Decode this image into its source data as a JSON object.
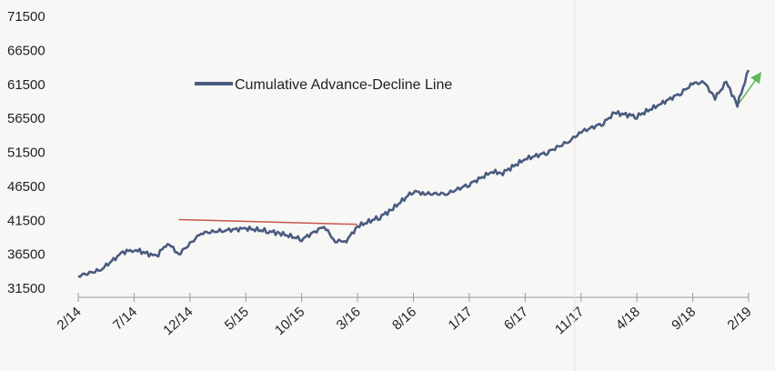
{
  "chart_data": {
    "type": "line",
    "title": "",
    "xlabel": "",
    "ylabel": "",
    "ylim": [
      31500,
      71500
    ],
    "yticks": [
      31500,
      36500,
      41500,
      46500,
      51500,
      56500,
      61500,
      66500,
      71500
    ],
    "xlim": [
      "2014-02",
      "2019-02"
    ],
    "xticks": [
      "2/14",
      "7/14",
      "12/14",
      "5/15",
      "10/15",
      "3/16",
      "8/16",
      "1/17",
      "6/17",
      "11/17",
      "4/18",
      "9/18",
      "2/19"
    ],
    "grid": false,
    "legend_position": "upper-left",
    "series": [
      {
        "name": "Cumulative Advance-Decline Line",
        "color": "#4a5b80",
        "x": [
          "2014-02",
          "2014-04",
          "2014-06",
          "2014-07",
          "2014-09",
          "2014-10",
          "2014-11",
          "2015-01",
          "2015-03",
          "2015-05",
          "2015-07",
          "2015-08",
          "2015-10",
          "2015-12",
          "2016-01",
          "2016-02",
          "2016-03",
          "2016-05",
          "2016-06",
          "2016-08",
          "2016-09",
          "2016-11",
          "2017-01",
          "2017-03",
          "2017-04",
          "2017-06",
          "2017-08",
          "2017-10",
          "2017-11",
          "2018-01",
          "2018-02",
          "2018-04",
          "2018-06",
          "2018-08",
          "2018-09",
          "2018-10",
          "2018-11",
          "2018-12",
          "2019-01",
          "2019-02"
        ],
        "values": [
          33300,
          34200,
          36800,
          37200,
          36200,
          38200,
          36500,
          39600,
          40000,
          40300,
          39900,
          39600,
          38700,
          40600,
          38400,
          38500,
          40600,
          42000,
          43000,
          45800,
          45400,
          45400,
          46800,
          48600,
          48500,
          50500,
          51500,
          53200,
          54500,
          55800,
          57300,
          56800,
          58500,
          60300,
          61600,
          61800,
          59500,
          61800,
          58500,
          63600
        ]
      }
    ],
    "annotations": [
      {
        "type": "trend-line",
        "color": "#c8564a",
        "x": [
          "2014-11",
          "2016-03"
        ],
        "values": [
          41600,
          40900
        ]
      },
      {
        "type": "arrow",
        "color": "#5cb85c",
        "x": [
          "2019-01",
          "2019-03"
        ],
        "values": [
          58400,
          63000
        ]
      }
    ]
  }
}
